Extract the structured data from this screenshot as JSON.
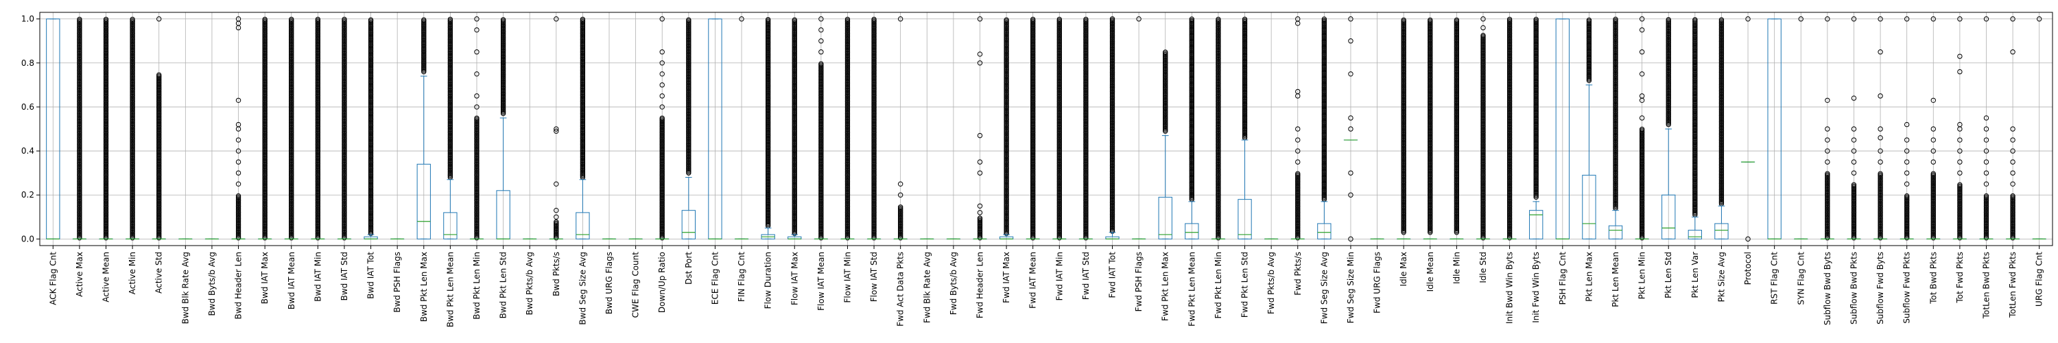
{
  "chart_data": {
    "type": "box",
    "title": "",
    "xlabel": "",
    "ylabel": "",
    "ylim": [
      -0.03,
      1.03
    ],
    "yticks": [
      0.0,
      0.2,
      0.4,
      0.6,
      0.8,
      1.0
    ],
    "ytick_labels": [
      "0.0",
      "0.2",
      "0.4",
      "0.6",
      "0.8",
      "1.0"
    ],
    "grid": true,
    "colors": {
      "box": "#1f77b4",
      "median": "#2ca02c",
      "flier": "#000000",
      "grid": "#b0b0b0"
    },
    "categories": [
      {
        "label": "ACK Flag Cnt",
        "q1": 0,
        "med": 0,
        "q3": 1,
        "wlo": 0,
        "whi": 1,
        "fliers": "none"
      },
      {
        "label": "Active Max",
        "q1": 0,
        "med": 0,
        "q3": 0,
        "wlo": 0,
        "whi": 0,
        "fliers": "dense",
        "fmax": 1.0
      },
      {
        "label": "Active Mean",
        "q1": 0,
        "med": 0,
        "q3": 0,
        "wlo": 0,
        "whi": 0,
        "fliers": "dense",
        "fmax": 1.0
      },
      {
        "label": "Active Min",
        "q1": 0,
        "med": 0,
        "q3": 0,
        "wlo": 0,
        "whi": 0,
        "fliers": "dense",
        "fmax": 1.0
      },
      {
        "label": "Active Std",
        "q1": 0,
        "med": 0,
        "q3": 0,
        "wlo": 0,
        "whi": 0,
        "fliers": "dense",
        "fmax": 0.75,
        "extra": [
          1.0
        ]
      },
      {
        "label": "Bwd Blk Rate Avg",
        "q1": 0,
        "med": 0,
        "q3": 0,
        "wlo": 0,
        "whi": 0,
        "fliers": "none"
      },
      {
        "label": "Bwd Byts/b Avg",
        "q1": 0,
        "med": 0,
        "q3": 0,
        "wlo": 0,
        "whi": 0,
        "fliers": "none"
      },
      {
        "label": "Bwd Header Len",
        "q1": 0,
        "med": 0,
        "q3": 0,
        "wlo": 0,
        "whi": 0,
        "fliers": "sparse",
        "fmax": 0.2,
        "extra": [
          0.25,
          0.3,
          0.35,
          0.4,
          0.45,
          0.5,
          0.52,
          0.63,
          0.96,
          0.98,
          1.0
        ]
      },
      {
        "label": "Bwd IAT Max",
        "q1": 0,
        "med": 0,
        "q3": 0,
        "wlo": 0,
        "whi": 0,
        "fliers": "dense",
        "fmax": 1.0
      },
      {
        "label": "Bwd IAT Mean",
        "q1": 0,
        "med": 0,
        "q3": 0,
        "wlo": 0,
        "whi": 0,
        "fliers": "dense",
        "fmax": 1.0
      },
      {
        "label": "Bwd IAT Min",
        "q1": 0,
        "med": 0,
        "q3": 0,
        "wlo": 0,
        "whi": 0,
        "fliers": "dense",
        "fmax": 1.0
      },
      {
        "label": "Bwd IAT Std",
        "q1": 0,
        "med": 0,
        "q3": 0,
        "wlo": 0,
        "whi": 0,
        "fliers": "dense",
        "fmax": 1.0
      },
      {
        "label": "Bwd IAT Tot",
        "q1": 0,
        "med": 0,
        "q3": 0.01,
        "wlo": 0,
        "whi": 0.02,
        "fliers": "dense",
        "fmax": 1.0
      },
      {
        "label": "Bwd PSH Flags",
        "q1": 0,
        "med": 0,
        "q3": 0,
        "wlo": 0,
        "whi": 0,
        "fliers": "none"
      },
      {
        "label": "Bwd Pkt Len Max",
        "q1": 0,
        "med": 0.08,
        "q3": 0.34,
        "wlo": 0,
        "whi": 0.74,
        "fliers": "dense",
        "fmin": 0.76,
        "fmax": 1.0
      },
      {
        "label": "Bwd Pkt Len Mean",
        "q1": 0,
        "med": 0.02,
        "q3": 0.12,
        "wlo": 0,
        "whi": 0.27,
        "fliers": "dense",
        "fmin": 0.28,
        "fmax": 1.0
      },
      {
        "label": "Bwd Pkt Len Min",
        "q1": 0,
        "med": 0,
        "q3": 0,
        "wlo": 0,
        "whi": 0,
        "fliers": "dense",
        "fmax": 0.55,
        "extra": [
          0.6,
          0.65,
          0.75,
          0.85,
          0.95,
          1.0
        ]
      },
      {
        "label": "Bwd Pkt Len Std",
        "q1": 0,
        "med": 0,
        "q3": 0.22,
        "wlo": 0,
        "whi": 0.55,
        "fliers": "dense",
        "fmin": 0.57,
        "fmax": 1.0
      },
      {
        "label": "Bwd Pkts/b Avg",
        "q1": 0,
        "med": 0,
        "q3": 0,
        "wlo": 0,
        "whi": 0,
        "fliers": "none"
      },
      {
        "label": "Bwd Pkts/s",
        "q1": 0,
        "med": 0,
        "q3": 0,
        "wlo": 0,
        "whi": 0,
        "fliers": "sparse",
        "fmax": 0.08,
        "extra": [
          0.1,
          0.13,
          0.25,
          0.49,
          0.5,
          1.0
        ]
      },
      {
        "label": "Bwd Seg Size Avg",
        "q1": 0,
        "med": 0.02,
        "q3": 0.12,
        "wlo": 0,
        "whi": 0.27,
        "fliers": "dense",
        "fmin": 0.28,
        "fmax": 1.0
      },
      {
        "label": "Bwd URG Flags",
        "q1": 0,
        "med": 0,
        "q3": 0,
        "wlo": 0,
        "whi": 0,
        "fliers": "none"
      },
      {
        "label": "CWE Flag Count",
        "q1": 0,
        "med": 0,
        "q3": 0,
        "wlo": 0,
        "whi": 0,
        "fliers": "none"
      },
      {
        "label": "Down/Up Ratio",
        "q1": 0,
        "med": 0,
        "q3": 0,
        "wlo": 0,
        "whi": 0,
        "fliers": "dense",
        "fmax": 0.55,
        "extra": [
          0.6,
          0.65,
          0.7,
          0.75,
          0.8,
          0.85,
          1.0
        ]
      },
      {
        "label": "Dst Port",
        "q1": 0,
        "med": 0.03,
        "q3": 0.13,
        "wlo": 0,
        "whi": 0.28,
        "fliers": "dense",
        "fmin": 0.3,
        "fmax": 1.0
      },
      {
        "label": "ECE Flag Cnt",
        "q1": 0,
        "med": 0,
        "q3": 1,
        "wlo": 0,
        "whi": 1,
        "fliers": "none"
      },
      {
        "label": "FIN Flag Cnt",
        "q1": 0,
        "med": 0,
        "q3": 0,
        "wlo": 0,
        "whi": 0,
        "fliers": "sparse",
        "fmax": 0,
        "extra": [
          1.0
        ]
      },
      {
        "label": "Flow Duration",
        "q1": 0,
        "med": 0.01,
        "q3": 0.02,
        "wlo": 0,
        "whi": 0.05,
        "fliers": "dense",
        "fmin": 0.06,
        "fmax": 1.0
      },
      {
        "label": "Flow IAT Max",
        "q1": 0,
        "med": 0,
        "q3": 0.01,
        "wlo": 0,
        "whi": 0.02,
        "fliers": "dense",
        "fmax": 1.0
      },
      {
        "label": "Flow IAT Mean",
        "q1": 0,
        "med": 0,
        "q3": 0,
        "wlo": 0,
        "whi": 0,
        "fliers": "dense",
        "fmax": 0.8,
        "extra": [
          0.85,
          0.9,
          0.95,
          1.0
        ]
      },
      {
        "label": "Flow IAT Min",
        "q1": 0,
        "med": 0,
        "q3": 0,
        "wlo": 0,
        "whi": 0,
        "fliers": "dense",
        "fmax": 1.0
      },
      {
        "label": "Flow IAT Std",
        "q1": 0,
        "med": 0,
        "q3": 0,
        "wlo": 0,
        "whi": 0,
        "fliers": "dense",
        "fmax": 1.0
      },
      {
        "label": "Fwd Act Data Pkts",
        "q1": 0,
        "med": 0,
        "q3": 0,
        "wlo": 0,
        "whi": 0,
        "fliers": "dense",
        "fmax": 0.15,
        "extra": [
          0.2,
          0.25,
          1.0
        ]
      },
      {
        "label": "Fwd Blk Rate Avg",
        "q1": 0,
        "med": 0,
        "q3": 0,
        "wlo": 0,
        "whi": 0,
        "fliers": "none"
      },
      {
        "label": "Fwd Byts/b Avg",
        "q1": 0,
        "med": 0,
        "q3": 0,
        "wlo": 0,
        "whi": 0,
        "fliers": "none"
      },
      {
        "label": "Fwd Header Len",
        "q1": 0,
        "med": 0,
        "q3": 0,
        "wlo": 0,
        "whi": 0,
        "fliers": "sparse",
        "fmax": 0.1,
        "extra": [
          0.12,
          0.15,
          0.3,
          0.35,
          0.47,
          0.8,
          0.84,
          1.0
        ]
      },
      {
        "label": "Fwd IAT Max",
        "q1": 0,
        "med": 0,
        "q3": 0.01,
        "wlo": 0,
        "whi": 0.02,
        "fliers": "dense",
        "fmax": 1.0
      },
      {
        "label": "Fwd IAT Mean",
        "q1": 0,
        "med": 0,
        "q3": 0,
        "wlo": 0,
        "whi": 0,
        "fliers": "dense",
        "fmax": 1.0
      },
      {
        "label": "Fwd IAT Min",
        "q1": 0,
        "med": 0,
        "q3": 0,
        "wlo": 0,
        "whi": 0,
        "fliers": "dense",
        "fmax": 1.0
      },
      {
        "label": "Fwd IAT Std",
        "q1": 0,
        "med": 0,
        "q3": 0,
        "wlo": 0,
        "whi": 0,
        "fliers": "dense",
        "fmax": 1.0
      },
      {
        "label": "Fwd IAT Tot",
        "q1": 0,
        "med": 0,
        "q3": 0.01,
        "wlo": 0,
        "whi": 0.03,
        "fliers": "dense",
        "fmax": 1.0
      },
      {
        "label": "Fwd PSH Flags",
        "q1": 0,
        "med": 0,
        "q3": 0,
        "wlo": 0,
        "whi": 0,
        "fliers": "sparse",
        "fmax": 0,
        "extra": [
          1.0
        ]
      },
      {
        "label": "Fwd Pkt Len Max",
        "q1": 0,
        "med": 0.02,
        "q3": 0.19,
        "wlo": 0,
        "whi": 0.47,
        "fliers": "dense",
        "fmin": 0.49,
        "fmax": 0.85
      },
      {
        "label": "Fwd Pkt Len Mean",
        "q1": 0,
        "med": 0.03,
        "q3": 0.07,
        "wlo": 0,
        "whi": 0.17,
        "fliers": "dense",
        "fmin": 0.18,
        "fmax": 1.0
      },
      {
        "label": "Fwd Pkt Len Min",
        "q1": 0,
        "med": 0,
        "q3": 0,
        "wlo": 0,
        "whi": 0,
        "fliers": "dense",
        "fmax": 1.0
      },
      {
        "label": "Fwd Pkt Len Std",
        "q1": 0,
        "med": 0.02,
        "q3": 0.18,
        "wlo": 0,
        "whi": 0.45,
        "fliers": "dense",
        "fmin": 0.46,
        "fmax": 1.0
      },
      {
        "label": "Fwd Pkts/b Avg",
        "q1": 0,
        "med": 0,
        "q3": 0,
        "wlo": 0,
        "whi": 0,
        "fliers": "none"
      },
      {
        "label": "Fwd Pkts/s",
        "q1": 0,
        "med": 0,
        "q3": 0,
        "wlo": 0,
        "whi": 0,
        "fliers": "sparse",
        "fmax": 0.3,
        "extra": [
          0.35,
          0.4,
          0.45,
          0.5,
          0.65,
          0.67,
          0.98,
          1.0
        ]
      },
      {
        "label": "Fwd Seg Size Avg",
        "q1": 0,
        "med": 0.03,
        "q3": 0.07,
        "wlo": 0,
        "whi": 0.17,
        "fliers": "dense",
        "fmin": 0.18,
        "fmax": 1.0
      },
      {
        "label": "Fwd Seg Size Min",
        "q1": 0.45,
        "med": 0.45,
        "q3": 0.45,
        "wlo": 0.45,
        "whi": 0.45,
        "fliers": "sparse",
        "fmax": 0,
        "extra": [
          0.0,
          0.2,
          0.3,
          0.5,
          0.55,
          0.75,
          0.9,
          1.0
        ]
      },
      {
        "label": "Fwd URG Flags",
        "q1": 0,
        "med": 0,
        "q3": 0,
        "wlo": 0,
        "whi": 0,
        "fliers": "none"
      },
      {
        "label": "Idle Max",
        "q1": 0,
        "med": 0,
        "q3": 0,
        "wlo": 0,
        "whi": 0,
        "fliers": "dense",
        "fmin": 0.03,
        "fmax": 1.0
      },
      {
        "label": "Idle Mean",
        "q1": 0,
        "med": 0,
        "q3": 0,
        "wlo": 0,
        "whi": 0,
        "fliers": "dense",
        "fmin": 0.03,
        "fmax": 1.0
      },
      {
        "label": "Idle Min",
        "q1": 0,
        "med": 0,
        "q3": 0,
        "wlo": 0,
        "whi": 0,
        "fliers": "dense",
        "fmin": 0.03,
        "fmax": 1.0
      },
      {
        "label": "Idle Std",
        "q1": 0,
        "med": 0,
        "q3": 0,
        "wlo": 0,
        "whi": 0,
        "fliers": "dense",
        "fmax": 0.93,
        "extra": [
          0.96,
          1.0
        ]
      },
      {
        "label": "Init Bwd Win Byts",
        "q1": 0,
        "med": 0,
        "q3": 0,
        "wlo": 0,
        "whi": 0,
        "fliers": "dense",
        "fmax": 1.0
      },
      {
        "label": "Init Fwd Win Byts",
        "q1": 0,
        "med": 0.11,
        "q3": 0.13,
        "wlo": 0,
        "whi": 0.17,
        "fliers": "dense",
        "fmin": 0.19,
        "fmax": 1.0
      },
      {
        "label": "PSH Flag Cnt",
        "q1": 0,
        "med": 0,
        "q3": 1,
        "wlo": 0,
        "whi": 1,
        "fliers": "none"
      },
      {
        "label": "Pkt Len Max",
        "q1": 0,
        "med": 0.07,
        "q3": 0.29,
        "wlo": 0,
        "whi": 0.7,
        "fliers": "dense",
        "fmin": 0.72,
        "fmax": 1.0
      },
      {
        "label": "Pkt Len Mean",
        "q1": 0,
        "med": 0.04,
        "q3": 0.06,
        "wlo": 0,
        "whi": 0.13,
        "fliers": "dense",
        "fmin": 0.14,
        "fmax": 1.0
      },
      {
        "label": "Pkt Len Min",
        "q1": 0,
        "med": 0,
        "q3": 0,
        "wlo": 0,
        "whi": 0,
        "fliers": "dense",
        "fmax": 0.5,
        "extra": [
          0.55,
          0.63,
          0.65,
          0.75,
          0.85,
          0.95,
          1.0
        ]
      },
      {
        "label": "Pkt Len Std",
        "q1": 0,
        "med": 0.05,
        "q3": 0.2,
        "wlo": 0,
        "whi": 0.5,
        "fliers": "dense",
        "fmin": 0.52,
        "fmax": 1.0
      },
      {
        "label": "Pkt Len Var",
        "q1": 0,
        "med": 0.01,
        "q3": 0.04,
        "wlo": 0,
        "whi": 0.1,
        "fliers": "dense",
        "fmin": 0.11,
        "fmax": 1.0
      },
      {
        "label": "Pkt Size Avg",
        "q1": 0,
        "med": 0.04,
        "q3": 0.07,
        "wlo": 0,
        "whi": 0.15,
        "fliers": "dense",
        "fmin": 0.16,
        "fmax": 1.0
      },
      {
        "label": "Protocol",
        "q1": 0.35,
        "med": 0.35,
        "q3": 0.35,
        "wlo": 0.35,
        "whi": 0.35,
        "fliers": "sparse",
        "fmax": 0,
        "extra": [
          0.0,
          1.0
        ]
      },
      {
        "label": "RST Flag Cnt",
        "q1": 0,
        "med": 0,
        "q3": 1,
        "wlo": 0,
        "whi": 1,
        "fliers": "none"
      },
      {
        "label": "SYN Flag Cnt",
        "q1": 0,
        "med": 0,
        "q3": 0,
        "wlo": 0,
        "whi": 0,
        "fliers": "sparse",
        "fmax": 0,
        "extra": [
          1.0
        ]
      },
      {
        "label": "Subflow Bwd Byts",
        "q1": 0,
        "med": 0,
        "q3": 0,
        "wlo": 0,
        "whi": 0,
        "fliers": "dense",
        "fmax": 0.3,
        "extra": [
          0.35,
          0.4,
          0.45,
          0.5,
          0.63,
          1.0
        ]
      },
      {
        "label": "Subflow Bwd Pkts",
        "q1": 0,
        "med": 0,
        "q3": 0,
        "wlo": 0,
        "whi": 0,
        "fliers": "dense",
        "fmax": 0.25,
        "extra": [
          0.3,
          0.35,
          0.4,
          0.45,
          0.5,
          0.64,
          1.0
        ]
      },
      {
        "label": "Subflow Fwd Byts",
        "q1": 0,
        "med": 0,
        "q3": 0,
        "wlo": 0,
        "whi": 0,
        "fliers": "dense",
        "fmax": 0.3,
        "extra": [
          0.35,
          0.4,
          0.46,
          0.5,
          0.65,
          0.85,
          1.0
        ]
      },
      {
        "label": "Subflow Fwd Pkts",
        "q1": 0,
        "med": 0,
        "q3": 0,
        "wlo": 0,
        "whi": 0,
        "fliers": "dense",
        "fmax": 0.2,
        "extra": [
          0.25,
          0.3,
          0.35,
          0.4,
          0.45,
          0.52,
          1.0
        ]
      },
      {
        "label": "Tot Bwd Pkts",
        "q1": 0,
        "med": 0,
        "q3": 0,
        "wlo": 0,
        "whi": 0,
        "fliers": "dense",
        "fmax": 0.3,
        "extra": [
          0.35,
          0.4,
          0.45,
          0.5,
          0.63,
          1.0
        ]
      },
      {
        "label": "Tot Fwd Pkts",
        "q1": 0,
        "med": 0,
        "q3": 0,
        "wlo": 0,
        "whi": 0,
        "fliers": "dense",
        "fmax": 0.25,
        "extra": [
          0.3,
          0.35,
          0.4,
          0.45,
          0.5,
          0.52,
          0.76,
          0.83,
          1.0
        ]
      },
      {
        "label": "TotLen Bwd Pkts",
        "q1": 0,
        "med": 0,
        "q3": 0,
        "wlo": 0,
        "whi": 0,
        "fliers": "dense",
        "fmax": 0.2,
        "extra": [
          0.25,
          0.3,
          0.35,
          0.4,
          0.45,
          0.5,
          0.55,
          1.0
        ]
      },
      {
        "label": "TotLen Fwd Pkts",
        "q1": 0,
        "med": 0,
        "q3": 0,
        "wlo": 0,
        "whi": 0,
        "fliers": "dense",
        "fmax": 0.2,
        "extra": [
          0.25,
          0.3,
          0.35,
          0.4,
          0.45,
          0.5,
          0.85,
          1.0
        ]
      },
      {
        "label": "URG Flag Cnt",
        "q1": 0,
        "med": 0,
        "q3": 0,
        "wlo": 0,
        "whi": 0,
        "fliers": "sparse",
        "fmax": 0,
        "extra": [
          1.0
        ]
      }
    ]
  }
}
